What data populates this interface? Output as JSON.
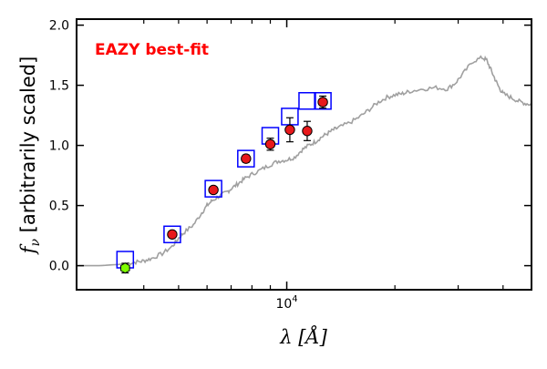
{
  "chart_data": {
    "type": "line",
    "annotation": "EAZY best-fit",
    "xlabel": "λ [Å]",
    "ylabel": "f_ν [arbitrarily scaled]",
    "ylabel_symbol": "f",
    "ylabel_subscript": "ν",
    "ylabel_text": "[arbitrarily scaled]",
    "xlabel_symbol": "λ",
    "xlabel_unit": "[Å]",
    "xscale": "log",
    "xlim": [
      2600,
      48000
    ],
    "ylim": [
      -0.2,
      2.05
    ],
    "yticks": [
      0.0,
      0.5,
      1.0,
      1.5,
      2.0
    ],
    "ytick_labels": [
      "0.0",
      "0.5",
      "1.0",
      "1.5",
      "2.0"
    ],
    "xtick_major_label": {
      "base": "10",
      "exp": "4",
      "value": 10000
    },
    "xtick_minor": [
      4000,
      5000,
      6000,
      7000,
      8000,
      9000,
      20000,
      30000,
      40000
    ],
    "grid": false,
    "colors": {
      "model": "#a0a0a0",
      "annotation": "#ff0000",
      "box": "#0000ff",
      "point": "#e8191b",
      "point_highlight": "#7fff00",
      "errorbar": "#000000"
    },
    "model_spectrum": {
      "x": [
        2600,
        3000,
        3400,
        3600,
        3800,
        4000,
        4200,
        4500,
        4800,
        5000,
        5200,
        5500,
        5800,
        6000,
        6200,
        6500,
        6800,
        7000,
        7300,
        7600,
        8000,
        8500,
        9000,
        9500,
        10000,
        10500,
        11000,
        11500,
        12000,
        12500,
        13000,
        13500,
        14000,
        15000,
        16000,
        17000,
        18000,
        19000,
        20000,
        21000,
        22000,
        24000,
        26000,
        28000,
        29500,
        31000,
        33000,
        35000,
        36000,
        37000,
        38000,
        39000,
        40000,
        42000,
        44000,
        46000,
        48000
      ],
      "y": [
        0.0,
        0.0,
        0.01,
        0.02,
        0.03,
        0.04,
        0.06,
        0.1,
        0.16,
        0.23,
        0.28,
        0.34,
        0.44,
        0.5,
        0.54,
        0.58,
        0.61,
        0.64,
        0.68,
        0.72,
        0.76,
        0.8,
        0.84,
        0.87,
        0.88,
        0.9,
        0.96,
        1.0,
        1.03,
        1.07,
        1.1,
        1.13,
        1.15,
        1.19,
        1.24,
        1.3,
        1.36,
        1.4,
        1.42,
        1.43,
        1.45,
        1.47,
        1.48,
        1.47,
        1.52,
        1.6,
        1.7,
        1.73,
        1.71,
        1.63,
        1.55,
        1.48,
        1.43,
        1.4,
        1.37,
        1.35,
        1.34
      ]
    },
    "model_photometry": {
      "x": [
        3550,
        4800,
        6250,
        7700,
        9000,
        10200,
        11400,
        12600
      ],
      "y": [
        0.05,
        0.26,
        0.64,
        0.89,
        1.08,
        1.24,
        1.37,
        1.37
      ]
    },
    "observed": [
      {
        "x": 3550,
        "y": -0.02,
        "yerr": 0.04,
        "highlight": true
      },
      {
        "x": 4800,
        "y": 0.26,
        "yerr": 0.02,
        "highlight": false
      },
      {
        "x": 6250,
        "y": 0.63,
        "yerr": 0.02,
        "highlight": false
      },
      {
        "x": 7700,
        "y": 0.89,
        "yerr": 0.03,
        "highlight": false
      },
      {
        "x": 9000,
        "y": 1.01,
        "yerr": 0.05,
        "highlight": false
      },
      {
        "x": 10200,
        "y": 1.13,
        "yerr": 0.1,
        "highlight": false
      },
      {
        "x": 11400,
        "y": 1.12,
        "yerr": 0.08,
        "highlight": false
      },
      {
        "x": 12600,
        "y": 1.36,
        "yerr": 0.05,
        "highlight": false
      }
    ]
  }
}
